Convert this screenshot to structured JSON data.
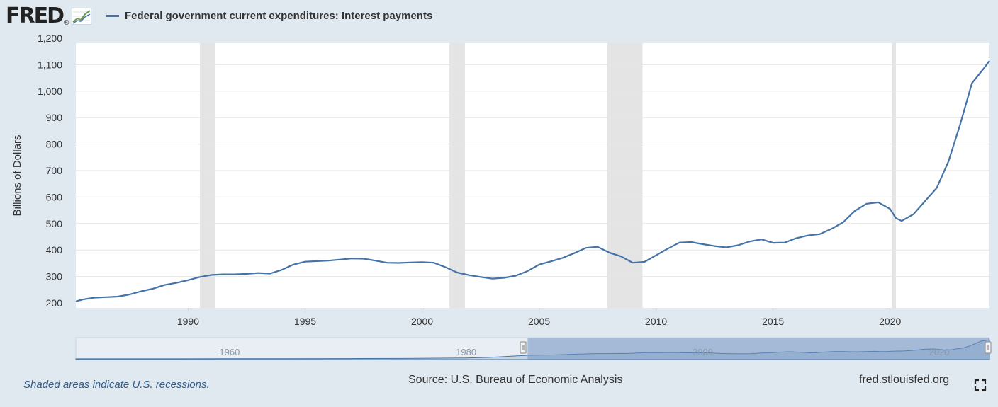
{
  "header": {
    "logo_text": "FRED",
    "logo_mark": "®",
    "legend_label": "Federal government current expenditures: Interest payments",
    "legend_color": "#4572a7"
  },
  "footer": {
    "recession_note": "Shaded areas indicate U.S. recessions.",
    "source": "Source: U.S. Bureau of Economic Analysis",
    "site": "fred.stlouisfed.org",
    "fullscreen_icon": "fullscreen-icon"
  },
  "navigator": {
    "labels": [
      "1960",
      "1980",
      "2000",
      "2020"
    ],
    "selected_range": [
      1985.2,
      2024.25
    ]
  },
  "chart_data": {
    "type": "line",
    "title": "",
    "xlabel": "",
    "ylabel": "Billions of Dollars",
    "xlim": [
      1985.2,
      2024.25
    ],
    "ylim": [
      200,
      1200
    ],
    "x_ticks": [
      1990,
      1995,
      2000,
      2005,
      2010,
      2015,
      2020
    ],
    "y_ticks": [
      200,
      300,
      400,
      500,
      600,
      700,
      800,
      900,
      1000,
      1100,
      1200
    ],
    "y_tick_labels": [
      "200",
      "300",
      "400",
      "500",
      "600",
      "700",
      "800",
      "900",
      "1,000",
      "1,100",
      "1,200"
    ],
    "grid": true,
    "recessions": [
      [
        1990.5,
        1991.17
      ],
      [
        2001.17,
        2001.83
      ],
      [
        2007.92,
        2009.42
      ],
      [
        2020.08,
        2020.25
      ]
    ],
    "series": [
      {
        "name": "Federal government current expenditures: Interest payments",
        "color": "#4572a7",
        "x": [
          1985.2,
          1985.5,
          1986.0,
          1986.5,
          1987.0,
          1987.5,
          1988.0,
          1988.5,
          1989.0,
          1989.5,
          1990.0,
          1990.5,
          1991.0,
          1991.5,
          1992.0,
          1992.5,
          1993.0,
          1993.5,
          1994.0,
          1994.5,
          1995.0,
          1995.5,
          1996.0,
          1996.5,
          1997.0,
          1997.5,
          1998.0,
          1998.5,
          1999.0,
          1999.5,
          2000.0,
          2000.5,
          2001.0,
          2001.5,
          2002.0,
          2002.5,
          2003.0,
          2003.5,
          2004.0,
          2004.5,
          2005.0,
          2005.5,
          2006.0,
          2006.5,
          2007.0,
          2007.5,
          2008.0,
          2008.5,
          2009.0,
          2009.5,
          2010.0,
          2010.5,
          2011.0,
          2011.5,
          2012.0,
          2012.5,
          2013.0,
          2013.5,
          2014.0,
          2014.5,
          2015.0,
          2015.5,
          2016.0,
          2016.5,
          2017.0,
          2017.5,
          2018.0,
          2018.5,
          2019.0,
          2019.5,
          2020.0,
          2020.25,
          2020.5,
          2021.0,
          2021.5,
          2022.0,
          2022.5,
          2023.0,
          2023.5,
          2024.0,
          2024.25
        ],
        "y": [
          206,
          213,
          220,
          222,
          224,
          232,
          244,
          254,
          268,
          276,
          286,
          298,
          306,
          308,
          308,
          310,
          313,
          311,
          325,
          345,
          356,
          358,
          360,
          364,
          368,
          367,
          360,
          352,
          351,
          353,
          354,
          352,
          335,
          315,
          305,
          298,
          292,
          295,
          303,
          320,
          345,
          357,
          370,
          388,
          408,
          412,
          390,
          376,
          352,
          355,
          380,
          405,
          428,
          430,
          422,
          415,
          410,
          418,
          432,
          440,
          427,
          428,
          445,
          455,
          460,
          480,
          505,
          548,
          575,
          580,
          555,
          520,
          510,
          535,
          585,
          635,
          735,
          875,
          1030,
          1085,
          1115
        ]
      }
    ]
  }
}
